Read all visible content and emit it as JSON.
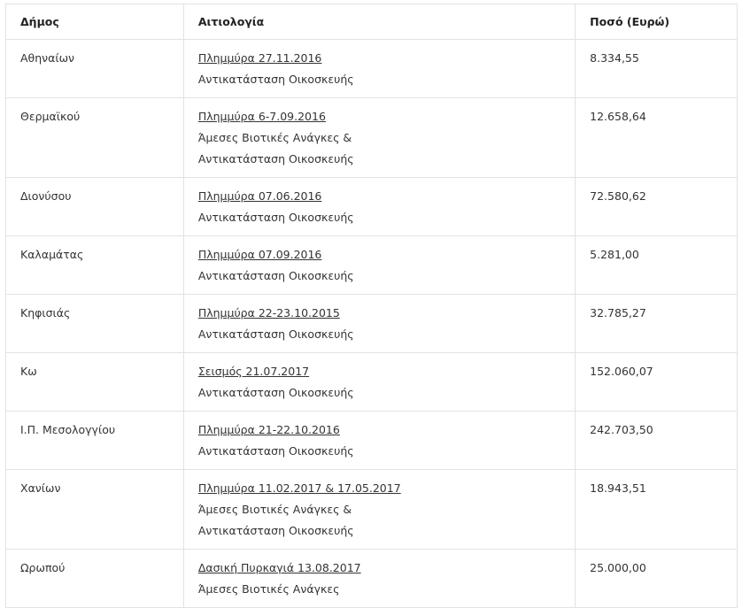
{
  "table": {
    "headers": [
      "Δήμος",
      "Αιτιολογία",
      "Ποσό (Ευρώ)"
    ],
    "rows": [
      {
        "municipality": "Αθηναίων",
        "event": "Πλημμύρα 27.11.2016",
        "description": [
          "Αντικατάσταση Οικοσκευής"
        ],
        "amount": "8.334,55"
      },
      {
        "municipality": "Θερμαϊκού",
        "event": "Πλημμύρα 6-7.09.2016",
        "description": [
          "Άμεσες Βιοτικές Ανάγκες &",
          "Αντικατάσταση Οικοσκευής"
        ],
        "amount": "12.658,64"
      },
      {
        "municipality": "Διονύσου",
        "event": "Πλημμύρα 07.06.2016",
        "description": [
          "Αντικατάσταση Οικοσκευής"
        ],
        "amount": "72.580,62"
      },
      {
        "municipality": "Καλαμάτας",
        "event": "Πλημμύρα 07.09.2016",
        "description": [
          "Αντικατάσταση Οικοσκευής"
        ],
        "amount": "5.281,00"
      },
      {
        "municipality": "Κηφισιάς",
        "event": "Πλημμύρα 22-23.10.2015",
        "description": [
          "Αντικατάσταση Οικοσκευής"
        ],
        "amount": "32.785,27"
      },
      {
        "municipality": "Κω",
        "event": "Σεισμός 21.07.2017",
        "description": [
          "Αντικατάσταση Οικοσκευής"
        ],
        "amount": "152.060,07"
      },
      {
        "municipality": "Ι.Π. Μεσολογγίου",
        "event": "Πλημμύρα 21-22.10.2016",
        "description": [
          "Αντικατάσταση Οικοσκευής"
        ],
        "amount": "242.703,50"
      },
      {
        "municipality": "Χανίων",
        "event": "Πλημμύρα 11.02.2017 & 17.05.2017",
        "description": [
          "Άμεσες Βιοτικές Ανάγκες &",
          "Αντικατάσταση Οικοσκευής"
        ],
        "amount": "18.943,51"
      },
      {
        "municipality": "Ωρωπού",
        "event": "Δασική Πυρκαγιά 13.08.2017",
        "description": [
          "Άμεσες Βιοτικές Ανάγκες"
        ],
        "amount": "25.000,00"
      }
    ]
  }
}
